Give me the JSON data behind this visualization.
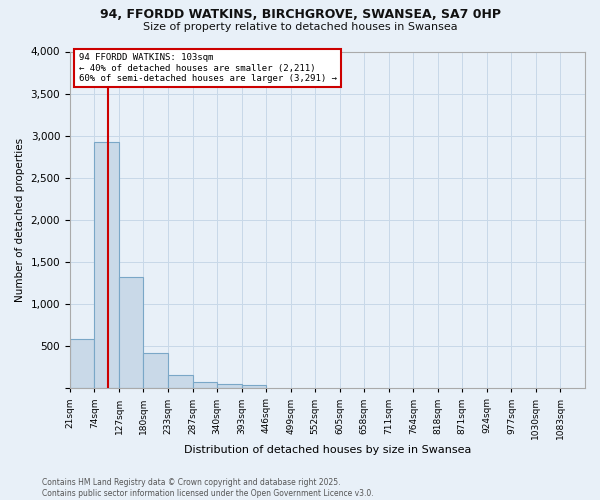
{
  "title_line1": "94, FFORDD WATKINS, BIRCHGROVE, SWANSEA, SA7 0HP",
  "title_line2": "Size of property relative to detached houses in Swansea",
  "xlabel": "Distribution of detached houses by size in Swansea",
  "ylabel": "Number of detached properties",
  "bin_labels": [
    "21sqm",
    "74sqm",
    "127sqm",
    "180sqm",
    "233sqm",
    "287sqm",
    "340sqm",
    "393sqm",
    "446sqm",
    "499sqm",
    "552sqm",
    "605sqm",
    "658sqm",
    "711sqm",
    "764sqm",
    "818sqm",
    "871sqm",
    "924sqm",
    "977sqm",
    "1030sqm",
    "1083sqm"
  ],
  "bar_values": [
    590,
    2930,
    1320,
    415,
    160,
    75,
    50,
    45,
    0,
    0,
    0,
    0,
    0,
    0,
    0,
    0,
    0,
    0,
    0,
    0,
    0
  ],
  "bar_color": "#c9d9e8",
  "bar_edge_color": "#7aa7c7",
  "red_line_color": "#cc0000",
  "annotation_text": "94 FFORDD WATKINS: 103sqm\n← 40% of detached houses are smaller (2,211)\n60% of semi-detached houses are larger (3,291) →",
  "annotation_box_color": "#ffffff",
  "annotation_box_edge": "#cc0000",
  "ylim": [
    0,
    4000
  ],
  "yticks": [
    0,
    500,
    1000,
    1500,
    2000,
    2500,
    3000,
    3500,
    4000
  ],
  "grid_color": "#c8d8e8",
  "background_color": "#e8f0f8",
  "footnote": "Contains HM Land Registry data © Crown copyright and database right 2025.\nContains public sector information licensed under the Open Government Licence v3.0.",
  "bin_width": 53,
  "vline_x": 103
}
